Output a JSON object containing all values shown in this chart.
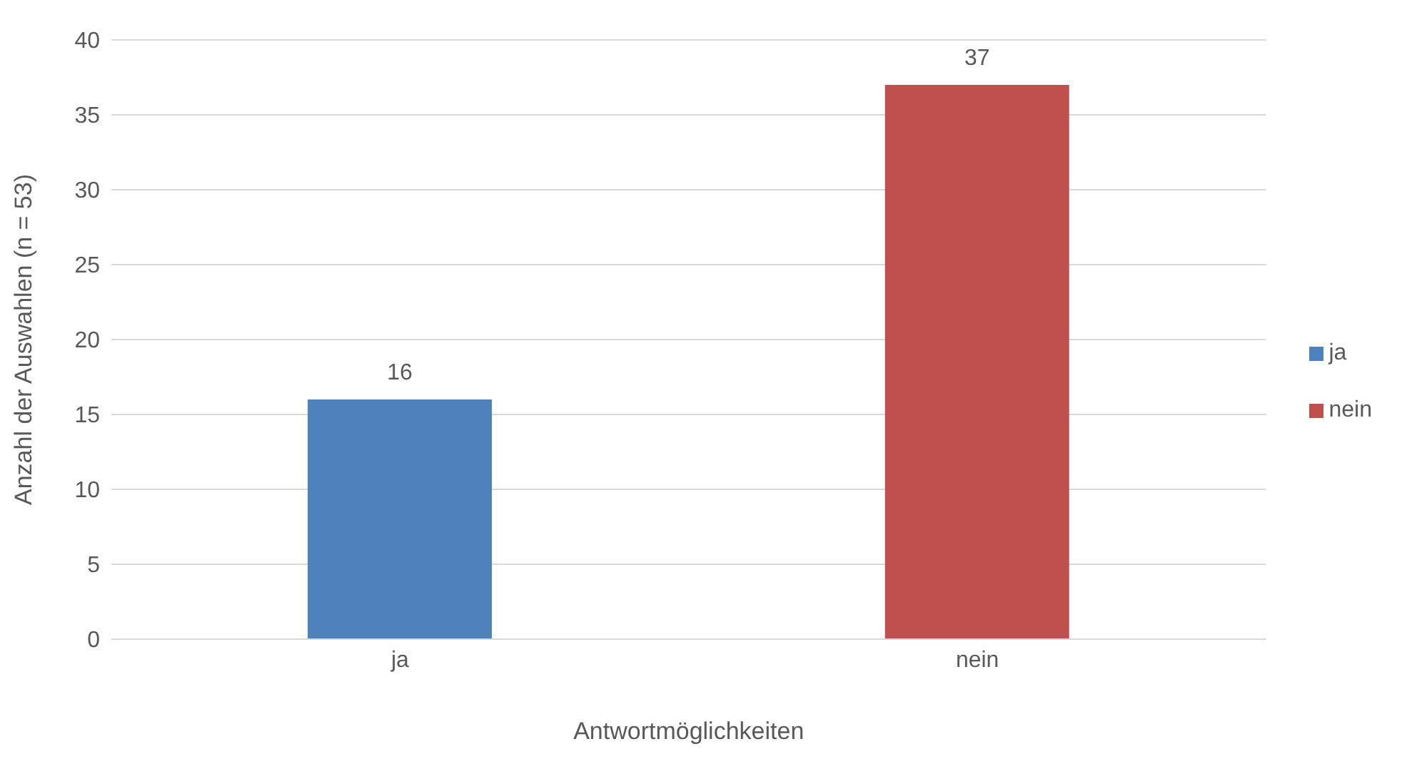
{
  "chart_data": {
    "type": "bar",
    "xlabel": "Antwortmöglichkeiten",
    "ylabel": "Anzahl der Auswahlen (n = 53)",
    "categories": [
      "ja",
      "nein"
    ],
    "series": [
      {
        "name": "ja",
        "color": "#4f81bd",
        "values": [
          16,
          null
        ]
      },
      {
        "name": "nein",
        "color": "#c0504d",
        "values": [
          null,
          37
        ]
      }
    ],
    "stacked": true,
    "ylim": [
      0,
      40
    ],
    "yticks": [
      0,
      5,
      10,
      15,
      20,
      25,
      30,
      35,
      40
    ],
    "grid": "y",
    "legend": "right",
    "data_labels": true
  }
}
